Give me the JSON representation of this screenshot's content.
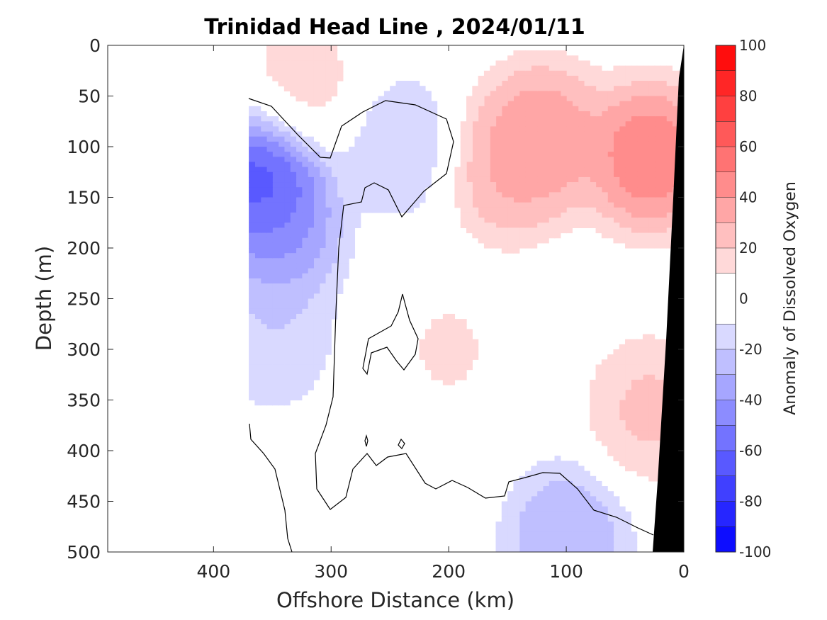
{
  "chart_data": {
    "type": "heatmap",
    "title": "Trinidad Head Line , 2024/01/11",
    "xlabel": "Offshore Distance (km)",
    "ylabel": "Depth (m)",
    "xlim": [
      490,
      0
    ],
    "ylim": [
      0,
      500
    ],
    "x_reversed": true,
    "y_reversed": true,
    "xticks": [
      400,
      300,
      200,
      100,
      0
    ],
    "yticks": [
      0,
      50,
      100,
      150,
      200,
      250,
      300,
      350,
      400,
      450,
      500
    ],
    "colorbar": {
      "label": "Anomaly of Dissolved Oxygen",
      "range": [
        -100,
        100
      ],
      "levels": [
        -100,
        -90,
        -80,
        -70,
        -60,
        -50,
        -40,
        -30,
        -20,
        -10,
        10,
        20,
        30,
        40,
        50,
        60,
        70,
        80,
        90,
        100
      ],
      "ticks": [
        100,
        80,
        60,
        40,
        20,
        0,
        -20,
        -40,
        -60,
        -80,
        -100
      ],
      "colormap": "blue-white-red"
    },
    "data_extent_km": [
      0,
      370
    ],
    "bathymetry_color": "#000000",
    "zero_contour": "black line",
    "features": [
      {
        "x": 360,
        "y": 135,
        "value": -90
      },
      {
        "x": 345,
        "y": 190,
        "value": -50
      },
      {
        "x": 350,
        "y": 290,
        "value": -25
      },
      {
        "x": 240,
        "y": 100,
        "value": -25
      },
      {
        "x": 100,
        "y": 485,
        "value": -40
      },
      {
        "x": 30,
        "y": 110,
        "value": 65
      },
      {
        "x": 120,
        "y": 90,
        "value": 50
      },
      {
        "x": 150,
        "y": 120,
        "value": 40
      },
      {
        "x": 325,
        "y": 40,
        "value": 20
      },
      {
        "x": 30,
        "y": 360,
        "value": 30
      },
      {
        "x": 200,
        "y": 300,
        "value": 15
      }
    ]
  }
}
